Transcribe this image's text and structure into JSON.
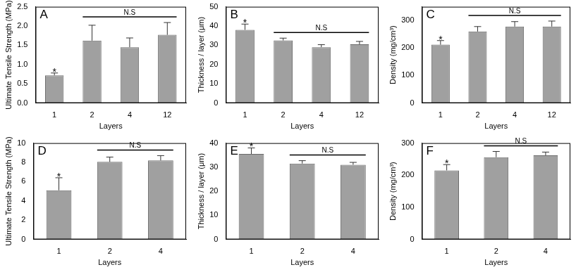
{
  "chart_data": [
    {
      "type": "bar",
      "title": "A",
      "x_label": "Layers",
      "y_label": "Ultimate Tensile Strength (MPa)",
      "categories": [
        "1",
        "2",
        "4",
        "12"
      ],
      "values": [
        0.72,
        1.62,
        1.45,
        1.77
      ],
      "errors": [
        0.06,
        0.4,
        0.24,
        0.32
      ],
      "color": "#a0a0a0",
      "ylim": [
        0,
        2.5
      ],
      "yticks": [
        {
          "value": 0,
          "label": "0.0"
        },
        0.5,
        {
          "value": 1,
          "label": "1.0"
        },
        1.5,
        {
          "value": 2,
          "label": "2.0"
        },
        2.5
      ],
      "grid": false,
      "annotations": [
        {
          "text": "*",
          "category": "1"
        },
        {
          "text": "N.S",
          "from": "2",
          "to": "12"
        }
      ]
    },
    {
      "type": "bar",
      "title": "B",
      "x_label": "Layers",
      "y_label": "Thickness / layer (μm)",
      "categories": [
        "1",
        "2",
        "4",
        "12"
      ],
      "values": [
        38,
        32.5,
        29,
        30.5
      ],
      "errors": [
        3,
        1.2,
        1.3,
        1.5
      ],
      "color": "#a0a0a0",
      "ylim": [
        0,
        50
      ],
      "yticks": [
        0,
        10,
        20,
        30,
        40,
        50
      ],
      "grid": false,
      "annotations": [
        {
          "text": "*",
          "category": "1"
        },
        {
          "text": "N.S",
          "from": "2",
          "to": "12"
        }
      ]
    },
    {
      "type": "bar",
      "title": "C",
      "x_label": "Layers",
      "y_label": "Density (mg/cm³)",
      "categories": [
        "1",
        "2",
        "4",
        "12"
      ],
      "values": [
        212,
        260,
        278,
        278
      ],
      "errors": [
        15,
        18,
        18,
        20
      ],
      "color": "#a0a0a0",
      "ylim": [
        0,
        350
      ],
      "yticks": [
        0,
        100,
        200,
        300
      ],
      "grid": false,
      "annotations": [
        {
          "text": "*",
          "category": "1"
        },
        {
          "text": "N.S",
          "from": "2",
          "to": "12"
        }
      ]
    },
    {
      "type": "bar",
      "title": "D",
      "x_label": "Layers",
      "y_label": "Ultimate Tensile Strength (MPa)",
      "categories": [
        "1",
        "2",
        "4"
      ],
      "values": [
        5.1,
        8.05,
        8.2
      ],
      "errors": [
        1.3,
        0.5,
        0.5
      ],
      "color": "#a0a0a0",
      "ylim": [
        0,
        10
      ],
      "yticks": [
        0,
        2,
        4,
        6,
        8,
        10
      ],
      "grid": false,
      "annotations": [
        {
          "text": "*",
          "category": "1"
        },
        {
          "text": "N.S",
          "from": "2",
          "to": "4"
        }
      ]
    },
    {
      "type": "bar",
      "title": "E",
      "x_label": "Layers",
      "y_label": "Thickness / layer (μm)",
      "categories": [
        "1",
        "2",
        "4"
      ],
      "values": [
        35.5,
        31.5,
        31
      ],
      "errors": [
        2.5,
        1.2,
        1.0
      ],
      "color": "#a0a0a0",
      "ylim": [
        0,
        40
      ],
      "yticks": [
        0,
        10,
        20,
        30,
        40
      ],
      "grid": false,
      "annotations": [
        {
          "text": "*",
          "category": "1"
        },
        {
          "text": "N.S",
          "from": "2",
          "to": "4"
        }
      ]
    },
    {
      "type": "bar",
      "title": "F",
      "x_label": "Layers",
      "y_label": "Density (mg/cm³)",
      "categories": [
        "1",
        "2",
        "4"
      ],
      "values": [
        215,
        256,
        262
      ],
      "errors": [
        18,
        18,
        10
      ],
      "color": "#a0a0a0",
      "ylim": [
        0,
        300
      ],
      "yticks": [
        0,
        100,
        200,
        300
      ],
      "grid": false,
      "annotations": [
        {
          "text": "*",
          "category": "1"
        },
        {
          "text": "N.S",
          "from": "2",
          "to": "4"
        }
      ]
    }
  ]
}
